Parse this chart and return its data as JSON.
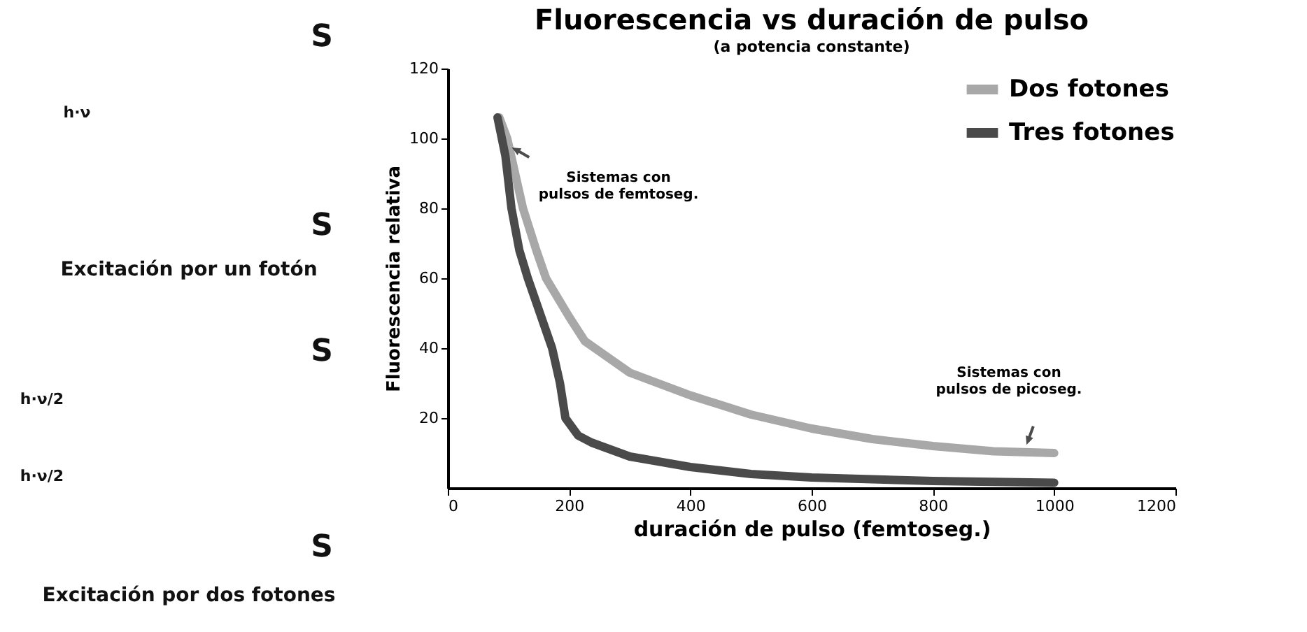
{
  "chart_data": [
    {
      "type": "other",
      "annotations": [
        "S",
        "h·ν",
        "S",
        "Excitación por un fotón",
        "S",
        "h·ν/2",
        "h·ν/2",
        "S",
        "Excitación por dos fotones"
      ]
    },
    {
      "type": "line",
      "title": "Fluorescencia vs duración de pulso",
      "subtitle": "(a potencia constante)",
      "xlabel": "duración de pulso (femtoseg.)",
      "ylabel": "Fluorescencia relativa",
      "xlim": [
        0,
        1200
      ],
      "xticks": [
        0,
        200,
        400,
        600,
        800,
        {
          "value": 1000,
          "label": "1000"
        },
        {
          "value": 1200,
          "label": "1200"
        }
      ],
      "ylim": [
        0,
        120
      ],
      "yticks": [
        20,
        40,
        60,
        80,
        100,
        120
      ],
      "grid": false,
      "legend": "top right",
      "line_style": "solid",
      "marker": "none",
      "series": [
        {
          "name": "Dos fotones",
          "color": "#a8a8a8",
          "x": [
            85,
            98,
            124,
            146,
            162,
            200,
            226,
            300,
            400,
            500,
            600,
            700,
            800,
            900,
            1000
          ],
          "values": [
            106,
            100,
            80,
            68,
            60,
            49,
            42,
            33,
            26.5,
            21,
            17,
            14,
            12,
            10.5,
            10
          ]
        },
        {
          "name": "Tres fotones",
          "color": "#4a4a4a",
          "x": [
            82,
            95,
            105,
            118,
            132,
            152,
            172,
            185,
            194,
            215,
            237,
            300,
            400,
            500,
            600,
            800,
            1000
          ],
          "values": [
            106,
            95,
            80,
            68,
            60,
            50,
            40,
            30,
            20,
            15,
            13,
            9,
            6,
            4,
            3,
            2,
            1.5
          ]
        }
      ],
      "annotations": [
        {
          "text": "Sistemas con\npulsos de femtoseg.",
          "x": 120,
          "y": 96
        },
        {
          "text": "Sistemas con\npulsos de picoseg.",
          "x": 960,
          "y": 15
        }
      ]
    }
  ]
}
